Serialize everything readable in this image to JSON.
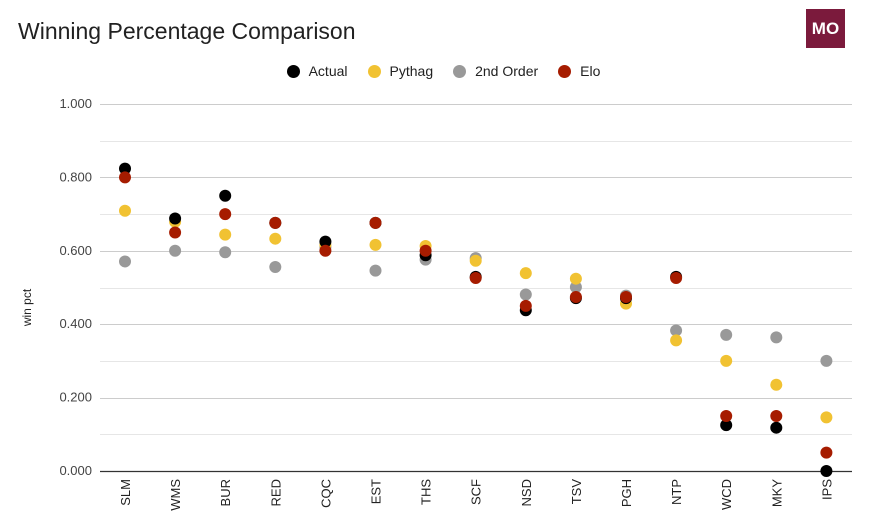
{
  "header": {
    "title": "Winning Percentage Comparison",
    "logo_text": "MO"
  },
  "colors": {
    "Actual": "#000000",
    "Pythag": "#f1c232",
    "2nd Order": "#999999",
    "Elo": "#a61c00",
    "logo_bg": "#7b1a3c"
  },
  "chart_data": {
    "type": "scatter",
    "title": "Winning Percentage Comparison",
    "xlabel": "",
    "ylabel": "win pct",
    "ylim": [
      0,
      1
    ],
    "yticks": [
      "0.000",
      "0.200",
      "0.400",
      "0.600",
      "0.800",
      "1.000"
    ],
    "grid": true,
    "legend_position": "top",
    "categories": [
      "SLM",
      "WMS",
      "BUR",
      "RED",
      "CQC",
      "EST",
      "THS",
      "SCF",
      "NSD",
      "TSV",
      "PGH",
      "NTP",
      "WCD",
      "MKY",
      "IPS"
    ],
    "series": [
      {
        "name": "Actual",
        "values": [
          0.824,
          0.688,
          0.75,
          0.676,
          0.625,
          0.676,
          0.588,
          0.529,
          0.438,
          0.471,
          0.471,
          0.529,
          0.125,
          0.118,
          0.0
        ]
      },
      {
        "name": "Pythag",
        "values": [
          0.709,
          0.679,
          0.644,
          0.633,
          0.616,
          0.616,
          0.613,
          0.573,
          0.539,
          0.524,
          0.456,
          0.356,
          0.3,
          0.235,
          0.146
        ]
      },
      {
        "name": "2nd Order",
        "values": [
          0.571,
          0.6,
          0.596,
          0.556,
          0.61,
          0.546,
          0.576,
          0.58,
          0.481,
          0.501,
          0.478,
          0.383,
          0.371,
          0.364,
          0.3
        ]
      },
      {
        "name": "Elo",
        "values": [
          0.8,
          0.65,
          0.7,
          0.676,
          0.6,
          0.676,
          0.6,
          0.526,
          0.45,
          0.474,
          0.474,
          0.526,
          0.15,
          0.15,
          0.05
        ]
      }
    ]
  }
}
